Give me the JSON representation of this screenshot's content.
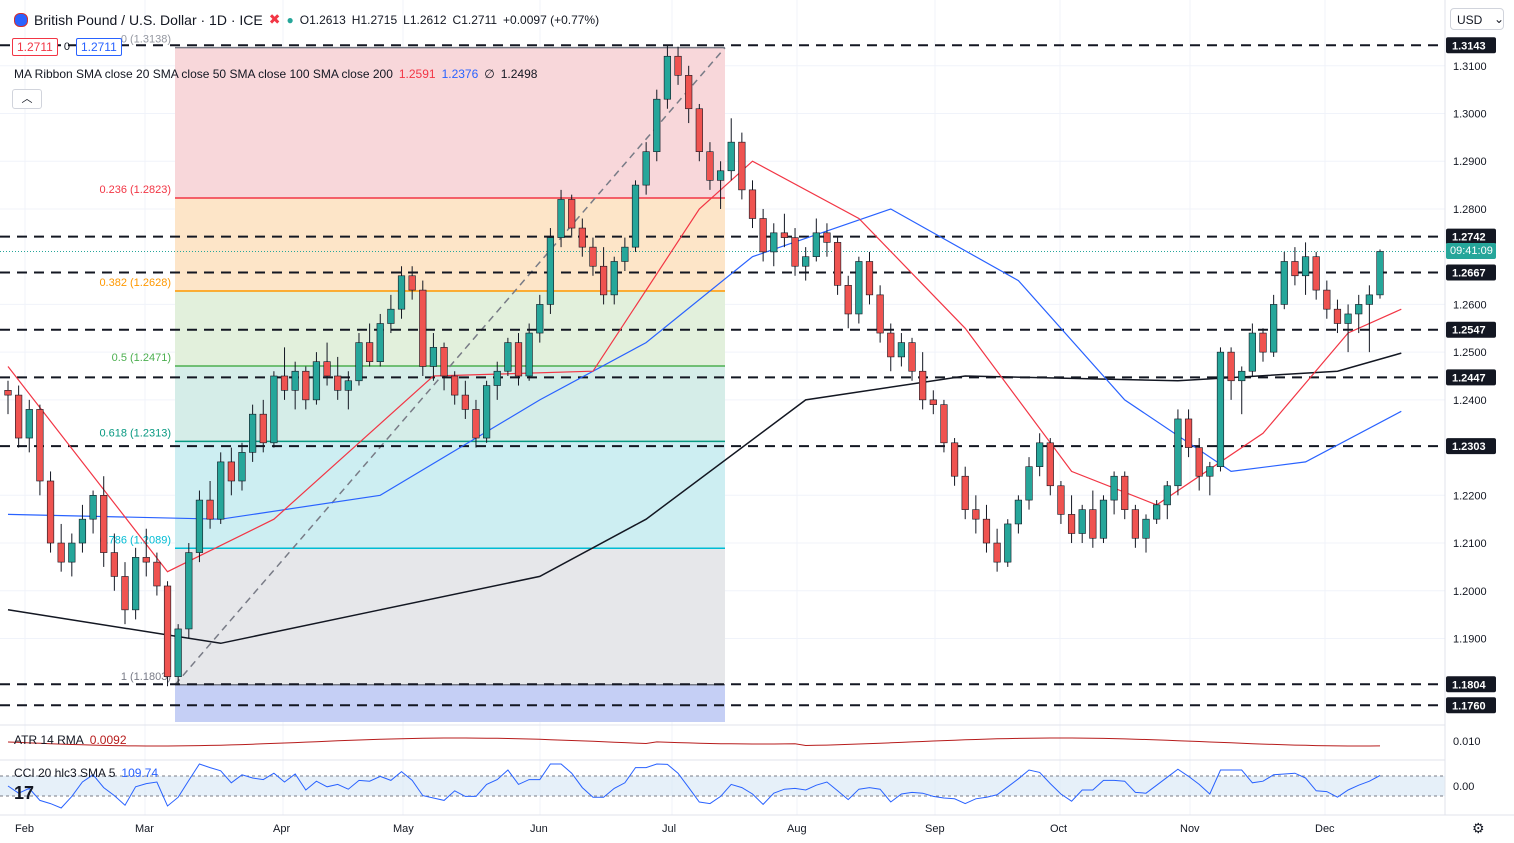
{
  "header": {
    "symbol_title": "British Pound / U.S. Dollar · 1D · ICE",
    "open": "O1.2613",
    "high": "H1.2715",
    "low": "L1.2612",
    "close": "C1.2711",
    "change": "+0.0097 (+0.77%)",
    "sell_price": "1.2711",
    "spread": "0",
    "buy_price": "1.2711"
  },
  "ma_ribbon": {
    "label": "MA Ribbon SMA close 20 SMA close 50 SMA close 100 SMA close 200",
    "v1": "1.2591",
    "v2": "1.2376",
    "v3": "∅",
    "v4": "1.2498"
  },
  "atr": {
    "label": "ATR 14 RMA",
    "value": "0.0092"
  },
  "cci": {
    "label": "CCI 20 hlc3 SMA 5",
    "value": "109.74"
  },
  "currency_select": "USD",
  "countdown": "09:41:09",
  "colors": {
    "up": "#26a69a",
    "down": "#ef5350",
    "sma20": "#f23645",
    "sma50": "#2962ff",
    "sma200": "#131722",
    "fib_red": "#f23645",
    "fib_orange": "#ff9800",
    "fib_green": "#4caf50",
    "fib_teal": "#089981",
    "fib_cyan": "#00bcd4",
    "fib_gray": "#787b86"
  },
  "chart_data": {
    "type": "candlestick",
    "x_labels": [
      "Feb",
      "Mar",
      "Apr",
      "May",
      "Jun",
      "Jul",
      "Aug",
      "Sep",
      "Oct",
      "Nov",
      "Dec"
    ],
    "y_ticks": [
      "1.3100",
      "1.3000",
      "1.2900",
      "1.2800",
      "1.2600",
      "1.2500",
      "1.2400",
      "1.2200",
      "1.2100",
      "1.2000",
      "1.1900"
    ],
    "ylim": [
      1.1725,
      1.3175
    ],
    "horizontal_levels": [
      "1.3143",
      "1.2742",
      "1.2667",
      "1.2547",
      "1.2447",
      "1.2303",
      "1.1804",
      "1.1760"
    ],
    "last_price": "1.2711",
    "fibonacci": [
      {
        "label": "0 (1.3138)",
        "price": 1.3138
      },
      {
        "label": "0.236 (1.2823)",
        "price": 1.2823
      },
      {
        "label": "0.382 (1.2628)",
        "price": 1.2628
      },
      {
        "label": "0.5 (1.2471)",
        "price": 1.2471
      },
      {
        "label": "0.618 (1.2313)",
        "price": 1.2313
      },
      {
        "label": "0.786 (1.2089)",
        "price": 1.2089
      },
      {
        "label": "1 (1.1803)",
        "price": 1.1803
      }
    ],
    "trendline": {
      "from": 1.1803,
      "to": 1.3138
    },
    "atr_axis_label": "0.010",
    "cci_axis_label": "0.00",
    "candles_approx": [
      [
        1.242,
        1.244,
        1.237,
        1.241
      ],
      [
        1.241,
        1.243,
        1.23,
        1.232
      ],
      [
        1.232,
        1.24,
        1.229,
        1.238
      ],
      [
        1.238,
        1.239,
        1.22,
        1.223
      ],
      [
        1.223,
        1.225,
        1.208,
        1.21
      ],
      [
        1.21,
        1.214,
        1.204,
        1.206
      ],
      [
        1.206,
        1.212,
        1.203,
        1.21
      ],
      [
        1.21,
        1.218,
        1.208,
        1.215
      ],
      [
        1.215,
        1.221,
        1.212,
        1.22
      ],
      [
        1.22,
        1.224,
        1.205,
        1.208
      ],
      [
        1.208,
        1.212,
        1.2,
        1.203
      ],
      [
        1.203,
        1.206,
        1.193,
        1.196
      ],
      [
        1.196,
        1.209,
        1.194,
        1.207
      ],
      [
        1.207,
        1.213,
        1.203,
        1.206
      ],
      [
        1.206,
        1.208,
        1.199,
        1.201
      ],
      [
        1.201,
        1.202,
        1.18,
        1.182
      ],
      [
        1.182,
        1.193,
        1.1803,
        1.192
      ],
      [
        1.192,
        1.21,
        1.19,
        1.208
      ],
      [
        1.208,
        1.221,
        1.206,
        1.219
      ],
      [
        1.219,
        1.223,
        1.213,
        1.215
      ],
      [
        1.215,
        1.229,
        1.214,
        1.227
      ],
      [
        1.227,
        1.23,
        1.22,
        1.223
      ],
      [
        1.223,
        1.231,
        1.221,
        1.229
      ],
      [
        1.229,
        1.239,
        1.227,
        1.237
      ],
      [
        1.237,
        1.24,
        1.229,
        1.231
      ],
      [
        1.231,
        1.246,
        1.23,
        1.245
      ],
      [
        1.245,
        1.251,
        1.24,
        1.242
      ],
      [
        1.242,
        1.248,
        1.238,
        1.246
      ],
      [
        1.246,
        1.247,
        1.238,
        1.24
      ],
      [
        1.24,
        1.25,
        1.239,
        1.248
      ],
      [
        1.248,
        1.252,
        1.243,
        1.245
      ],
      [
        1.245,
        1.249,
        1.24,
        1.242
      ],
      [
        1.242,
        1.246,
        1.238,
        1.244
      ],
      [
        1.244,
        1.254,
        1.243,
        1.252
      ],
      [
        1.252,
        1.256,
        1.247,
        1.248
      ],
      [
        1.248,
        1.258,
        1.247,
        1.256
      ],
      [
        1.256,
        1.262,
        1.254,
        1.259
      ],
      [
        1.259,
        1.268,
        1.257,
        1.266
      ],
      [
        1.266,
        1.268,
        1.261,
        1.263
      ],
      [
        1.263,
        1.265,
        1.245,
        1.247
      ],
      [
        1.247,
        1.254,
        1.244,
        1.251
      ],
      [
        1.251,
        1.252,
        1.242,
        1.245
      ],
      [
        1.245,
        1.246,
        1.239,
        1.241
      ],
      [
        1.241,
        1.244,
        1.236,
        1.238
      ],
      [
        1.238,
        1.24,
        1.23,
        1.232
      ],
      [
        1.232,
        1.244,
        1.231,
        1.243
      ],
      [
        1.243,
        1.248,
        1.24,
        1.246
      ],
      [
        1.246,
        1.253,
        1.245,
        1.252
      ],
      [
        1.252,
        1.254,
        1.243,
        1.245
      ],
      [
        1.245,
        1.256,
        1.244,
        1.254
      ],
      [
        1.254,
        1.262,
        1.252,
        1.26
      ],
      [
        1.26,
        1.276,
        1.258,
        1.274
      ],
      [
        1.274,
        1.284,
        1.272,
        1.282
      ],
      [
        1.282,
        1.283,
        1.274,
        1.276
      ],
      [
        1.276,
        1.278,
        1.27,
        1.272
      ],
      [
        1.272,
        1.274,
        1.266,
        1.268
      ],
      [
        1.268,
        1.272,
        1.26,
        1.262
      ],
      [
        1.262,
        1.27,
        1.26,
        1.269
      ],
      [
        1.269,
        1.274,
        1.267,
        1.272
      ],
      [
        1.272,
        1.286,
        1.271,
        1.285
      ],
      [
        1.285,
        1.294,
        1.283,
        1.292
      ],
      [
        1.292,
        1.305,
        1.29,
        1.303
      ],
      [
        1.303,
        1.3143,
        1.301,
        1.312
      ],
      [
        1.312,
        1.314,
        1.306,
        1.308
      ],
      [
        1.308,
        1.31,
        1.298,
        1.301
      ],
      [
        1.301,
        1.302,
        1.29,
        1.292
      ],
      [
        1.292,
        1.294,
        1.284,
        1.286
      ],
      [
        1.286,
        1.29,
        1.28,
        1.288
      ],
      [
        1.288,
        1.299,
        1.286,
        1.294
      ],
      [
        1.294,
        1.296,
        1.282,
        1.284
      ],
      [
        1.284,
        1.286,
        1.276,
        1.278
      ],
      [
        1.278,
        1.28,
        1.269,
        1.271
      ],
      [
        1.271,
        1.277,
        1.268,
        1.275
      ],
      [
        1.275,
        1.279,
        1.272,
        1.274
      ],
      [
        1.274,
        1.276,
        1.266,
        1.268
      ],
      [
        1.268,
        1.272,
        1.265,
        1.27
      ],
      [
        1.27,
        1.278,
        1.269,
        1.275
      ],
      [
        1.275,
        1.277,
        1.27,
        1.273
      ],
      [
        1.273,
        1.274,
        1.262,
        1.264
      ],
      [
        1.264,
        1.266,
        1.255,
        1.258
      ],
      [
        1.258,
        1.27,
        1.256,
        1.269
      ],
      [
        1.269,
        1.271,
        1.26,
        1.262
      ],
      [
        1.262,
        1.264,
        1.252,
        1.254
      ],
      [
        1.254,
        1.256,
        1.246,
        1.249
      ],
      [
        1.249,
        1.254,
        1.247,
        1.252
      ],
      [
        1.252,
        1.253,
        1.244,
        1.246
      ],
      [
        1.246,
        1.25,
        1.238,
        1.24
      ],
      [
        1.24,
        1.242,
        1.237,
        1.239
      ],
      [
        1.239,
        1.24,
        1.229,
        1.231
      ],
      [
        1.231,
        1.232,
        1.222,
        1.224
      ],
      [
        1.224,
        1.226,
        1.215,
        1.217
      ],
      [
        1.217,
        1.22,
        1.212,
        1.215
      ],
      [
        1.215,
        1.218,
        1.208,
        1.21
      ],
      [
        1.21,
        1.213,
        1.204,
        1.206
      ],
      [
        1.206,
        1.215,
        1.205,
        1.214
      ],
      [
        1.214,
        1.22,
        1.212,
        1.219
      ],
      [
        1.219,
        1.228,
        1.217,
        1.226
      ],
      [
        1.226,
        1.233,
        1.224,
        1.231
      ],
      [
        1.231,
        1.232,
        1.22,
        1.222
      ],
      [
        1.222,
        1.223,
        1.214,
        1.216
      ],
      [
        1.216,
        1.22,
        1.21,
        1.212
      ],
      [
        1.212,
        1.218,
        1.21,
        1.217
      ],
      [
        1.217,
        1.221,
        1.209,
        1.211
      ],
      [
        1.211,
        1.22,
        1.21,
        1.219
      ],
      [
        1.219,
        1.225,
        1.216,
        1.224
      ],
      [
        1.224,
        1.225,
        1.215,
        1.217
      ],
      [
        1.217,
        1.218,
        1.209,
        1.211
      ],
      [
        1.211,
        1.216,
        1.208,
        1.215
      ],
      [
        1.215,
        1.219,
        1.214,
        1.218
      ],
      [
        1.218,
        1.223,
        1.215,
        1.222
      ],
      [
        1.222,
        1.238,
        1.22,
        1.236
      ],
      [
        1.236,
        1.238,
        1.228,
        1.23
      ],
      [
        1.23,
        1.232,
        1.221,
        1.224
      ],
      [
        1.224,
        1.227,
        1.22,
        1.226
      ],
      [
        1.226,
        1.251,
        1.225,
        1.25
      ],
      [
        1.25,
        1.251,
        1.24,
        1.244
      ],
      [
        1.244,
        1.247,
        1.237,
        1.246
      ],
      [
        1.246,
        1.256,
        1.245,
        1.254
      ],
      [
        1.254,
        1.255,
        1.248,
        1.25
      ],
      [
        1.25,
        1.262,
        1.249,
        1.26
      ],
      [
        1.26,
        1.271,
        1.259,
        1.269
      ],
      [
        1.269,
        1.272,
        1.264,
        1.266
      ],
      [
        1.266,
        1.273,
        1.262,
        1.27
      ],
      [
        1.27,
        1.271,
        1.261,
        1.263
      ],
      [
        1.263,
        1.265,
        1.257,
        1.259
      ],
      [
        1.259,
        1.261,
        1.254,
        1.256
      ],
      [
        1.256,
        1.26,
        1.25,
        1.258
      ],
      [
        1.258,
        1.262,
        1.254,
        1.26
      ],
      [
        1.26,
        1.264,
        1.25,
        1.262
      ],
      [
        1.262,
        1.2715,
        1.2612,
        1.2711
      ]
    ],
    "sma20_approx": [
      [
        0,
        1.247
      ],
      [
        15,
        1.204
      ],
      [
        25,
        1.215
      ],
      [
        40,
        1.245
      ],
      [
        55,
        1.246
      ],
      [
        65,
        1.28
      ],
      [
        70,
        1.29
      ],
      [
        80,
        1.278
      ],
      [
        90,
        1.255
      ],
      [
        100,
        1.225
      ],
      [
        108,
        1.218
      ],
      [
        118,
        1.233
      ],
      [
        126,
        1.254
      ],
      [
        131,
        1.259
      ]
    ],
    "sma50_approx": [
      [
        0,
        1.216
      ],
      [
        20,
        1.215
      ],
      [
        35,
        1.22
      ],
      [
        50,
        1.24
      ],
      [
        60,
        1.252
      ],
      [
        70,
        1.27
      ],
      [
        83,
        1.28
      ],
      [
        95,
        1.265
      ],
      [
        105,
        1.24
      ],
      [
        115,
        1.225
      ],
      [
        122,
        1.227
      ],
      [
        131,
        1.2376
      ]
    ],
    "sma200_approx": [
      [
        0,
        1.196
      ],
      [
        20,
        1.189
      ],
      [
        35,
        1.196
      ],
      [
        50,
        1.203
      ],
      [
        60,
        1.215
      ],
      [
        75,
        1.24
      ],
      [
        90,
        1.245
      ],
      [
        110,
        1.244
      ],
      [
        125,
        1.246
      ],
      [
        131,
        1.2498
      ]
    ]
  }
}
